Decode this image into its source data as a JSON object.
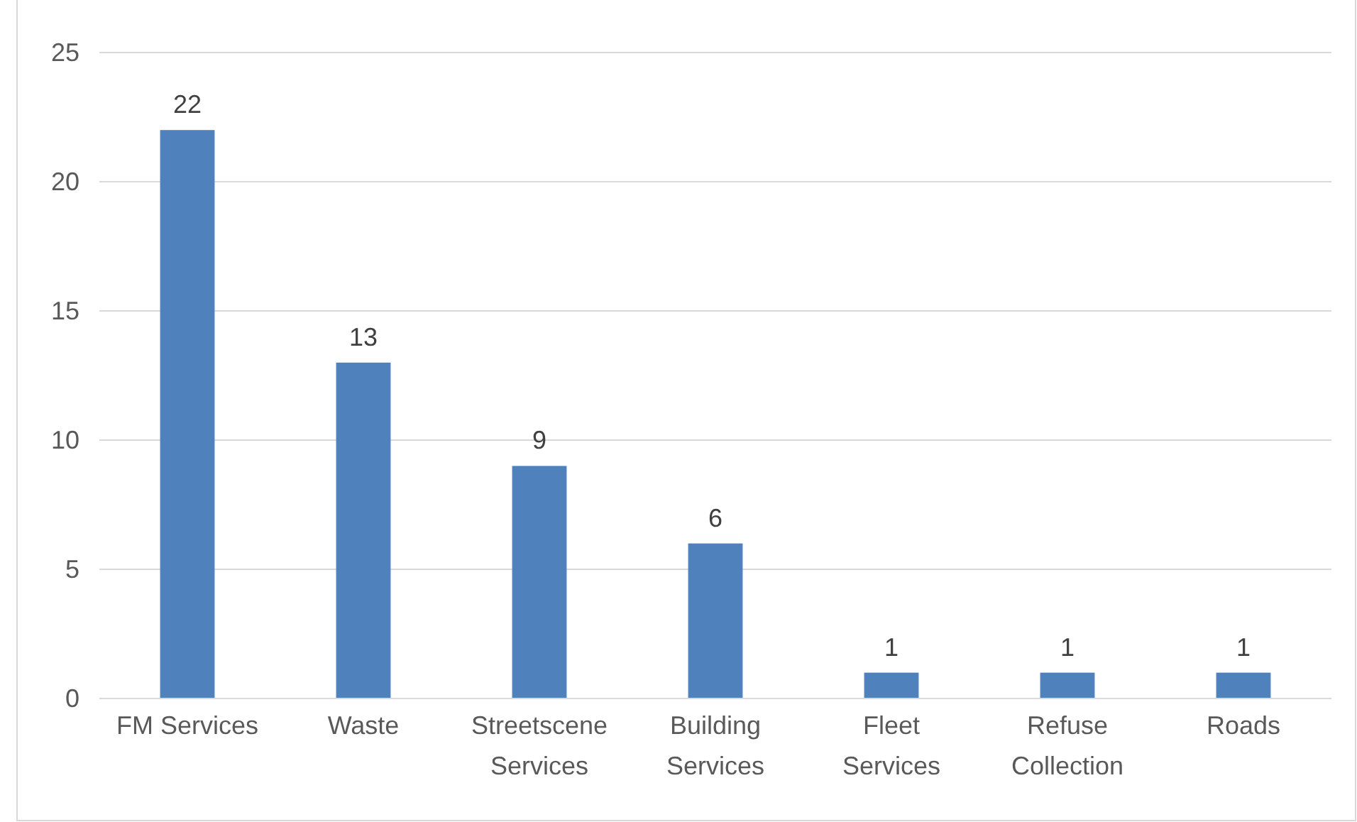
{
  "chart_data": {
    "type": "bar",
    "categories": [
      "FM Services",
      "Waste",
      "Streetscene Services",
      "Building Services",
      "Fleet Services",
      "Refuse Collection",
      "Roads"
    ],
    "values": [
      22,
      13,
      9,
      6,
      1,
      1,
      1
    ],
    "color": "#4f81bd",
    "ylim": [
      0,
      25
    ],
    "yticks": [
      0,
      5,
      10,
      15,
      20,
      25
    ],
    "grid": "y",
    "data_labels": true
  }
}
